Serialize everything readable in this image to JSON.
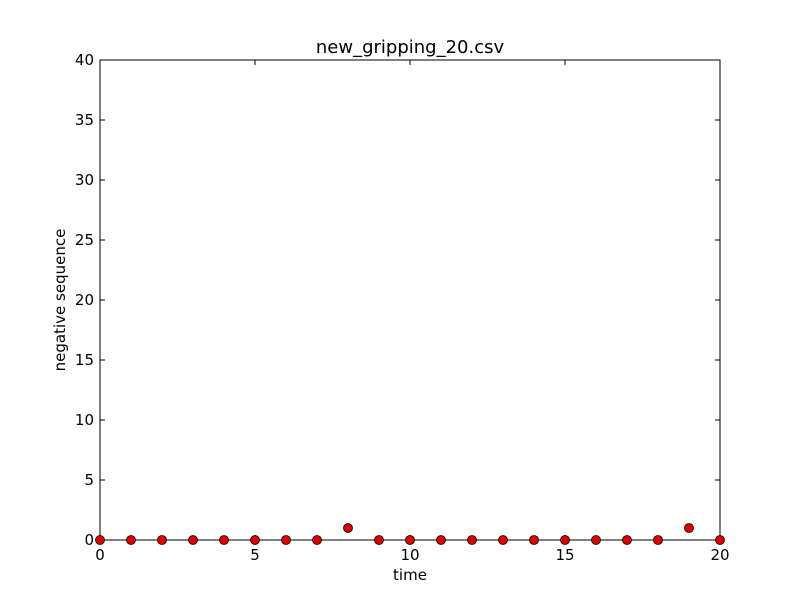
{
  "chart_data": {
    "type": "scatter",
    "title": "new_gripping_20.csv",
    "xlabel": "time",
    "ylabel": "negative sequence",
    "xlim": [
      0,
      20
    ],
    "ylim": [
      0,
      40
    ],
    "xticks": [
      0,
      5,
      10,
      15,
      20
    ],
    "yticks": [
      0,
      5,
      10,
      15,
      20,
      25,
      30,
      35,
      40
    ],
    "grid": false,
    "marker_color": "#e00000",
    "marker_edge_color": "#000000",
    "series": [
      {
        "x": [
          0,
          1,
          2,
          3,
          4,
          5,
          6,
          7,
          8,
          9,
          10,
          11,
          12,
          13,
          14,
          15,
          16,
          17,
          18,
          19,
          20
        ],
        "y": [
          0,
          0,
          0,
          0,
          0,
          0,
          0,
          0,
          1,
          0,
          0,
          0,
          0,
          0,
          0,
          0,
          0,
          0,
          0,
          1,
          0
        ]
      }
    ]
  }
}
